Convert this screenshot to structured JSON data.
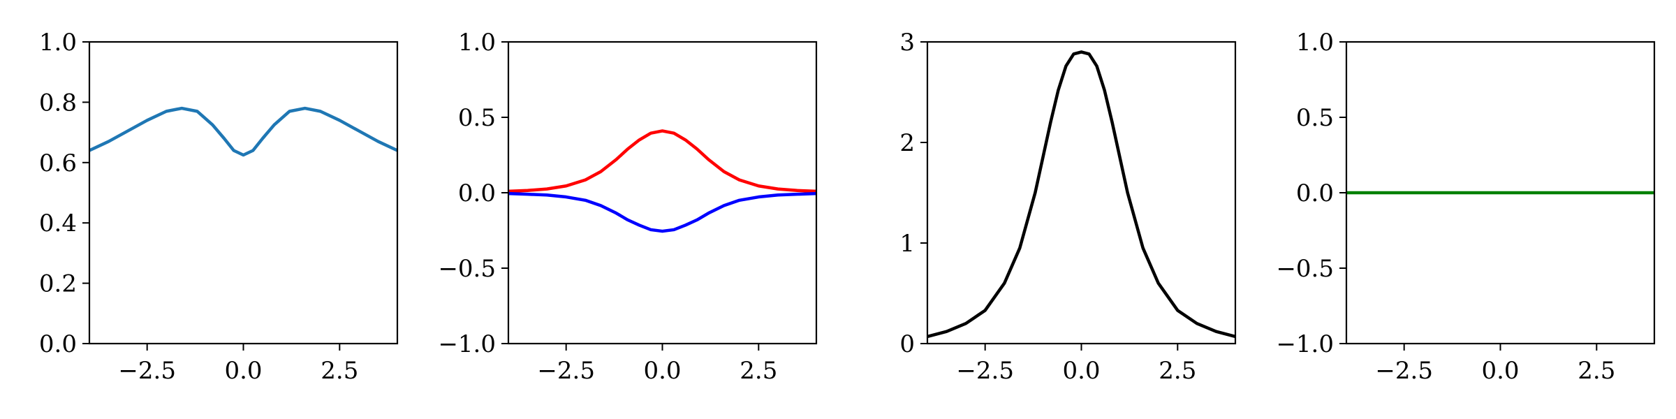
{
  "chart_data": [
    {
      "type": "line",
      "title": "",
      "xlabel": "",
      "ylabel": "",
      "xlim": [
        -4,
        4
      ],
      "ylim": [
        0,
        1
      ],
      "grid": false,
      "xticks": [
        -2.5,
        0,
        2.5
      ],
      "xtick_labels": [
        "−2.5",
        "0.0",
        "2.5"
      ],
      "yticks": [
        0,
        0.2,
        0.4,
        0.6,
        0.8,
        1.0
      ],
      "ytick_labels": [
        "0.0",
        "0.2",
        "0.4",
        "0.6",
        "0.8",
        "1.0"
      ],
      "series": [
        {
          "color": "#1f77b4",
          "x": [
            -4,
            -3.5,
            -3,
            -2.5,
            -2,
            -1.6,
            -1.2,
            -0.8,
            -0.5,
            -0.25,
            0,
            0.25,
            0.5,
            0.8,
            1.2,
            1.6,
            2,
            2.5,
            3,
            3.5,
            4
          ],
          "y": [
            0.64,
            0.67,
            0.705,
            0.74,
            0.77,
            0.78,
            0.77,
            0.725,
            0.68,
            0.64,
            0.625,
            0.64,
            0.68,
            0.725,
            0.77,
            0.78,
            0.77,
            0.74,
            0.705,
            0.67,
            0.64
          ]
        }
      ]
    },
    {
      "type": "line",
      "title": "",
      "xlabel": "",
      "ylabel": "",
      "xlim": [
        -4,
        4
      ],
      "ylim": [
        -1,
        1
      ],
      "grid": false,
      "xticks": [
        -2.5,
        0,
        2.5
      ],
      "xtick_labels": [
        "−2.5",
        "0.0",
        "2.5"
      ],
      "yticks": [
        -1,
        -0.5,
        0,
        0.5,
        1
      ],
      "ytick_labels": [
        "−1.0",
        "−0.5",
        "0.0",
        "0.5",
        "1.0"
      ],
      "series": [
        {
          "color": "#ff0000",
          "x": [
            -4,
            -3.5,
            -3,
            -2.5,
            -2,
            -1.6,
            -1.2,
            -0.9,
            -0.6,
            -0.3,
            0,
            0.3,
            0.6,
            0.9,
            1.2,
            1.6,
            2,
            2.5,
            3,
            3.5,
            4
          ],
          "y": [
            0.01,
            0.015,
            0.025,
            0.045,
            0.085,
            0.14,
            0.22,
            0.29,
            0.35,
            0.395,
            0.41,
            0.395,
            0.35,
            0.29,
            0.22,
            0.14,
            0.085,
            0.045,
            0.025,
            0.015,
            0.01
          ]
        },
        {
          "color": "#0000ff",
          "x": [
            -4,
            -3.5,
            -3,
            -2.5,
            -2,
            -1.6,
            -1.2,
            -0.9,
            -0.6,
            -0.3,
            0,
            0.3,
            0.6,
            0.9,
            1.2,
            1.6,
            2,
            2.5,
            3,
            3.5,
            4
          ],
          "y": [
            -0.005,
            -0.01,
            -0.015,
            -0.028,
            -0.05,
            -0.085,
            -0.135,
            -0.18,
            -0.215,
            -0.245,
            -0.255,
            -0.245,
            -0.215,
            -0.18,
            -0.135,
            -0.085,
            -0.05,
            -0.028,
            -0.015,
            -0.01,
            -0.005
          ]
        }
      ]
    },
    {
      "type": "line",
      "title": "",
      "xlabel": "",
      "ylabel": "",
      "xlim": [
        -4,
        4
      ],
      "ylim": [
        0,
        3
      ],
      "grid": false,
      "xticks": [
        -2.5,
        0,
        2.5
      ],
      "xtick_labels": [
        "−2.5",
        "0.0",
        "2.5"
      ],
      "yticks": [
        0,
        1,
        2,
        3
      ],
      "ytick_labels": [
        "0",
        "1",
        "2",
        "3"
      ],
      "series": [
        {
          "color": "#000000",
          "x": [
            -4,
            -3.5,
            -3,
            -2.5,
            -2,
            -1.6,
            -1.2,
            -1,
            -0.8,
            -0.6,
            -0.4,
            -0.2,
            0,
            0.2,
            0.4,
            0.6,
            0.8,
            1,
            1.2,
            1.6,
            2,
            2.5,
            3,
            3.5,
            4
          ],
          "y": [
            0.07,
            0.12,
            0.2,
            0.33,
            0.6,
            0.95,
            1.5,
            1.85,
            2.2,
            2.52,
            2.76,
            2.88,
            2.9,
            2.88,
            2.76,
            2.52,
            2.2,
            1.85,
            1.5,
            0.95,
            0.6,
            0.33,
            0.2,
            0.12,
            0.07
          ]
        }
      ]
    },
    {
      "type": "line",
      "title": "",
      "xlabel": "",
      "ylabel": "",
      "xlim": [
        -4,
        4
      ],
      "ylim": [
        -1,
        1
      ],
      "grid": false,
      "xticks": [
        -2.5,
        0,
        2.5
      ],
      "xtick_labels": [
        "−2.5",
        "0.0",
        "2.5"
      ],
      "yticks": [
        -1,
        -0.5,
        0,
        0.5,
        1
      ],
      "ytick_labels": [
        "−1.0",
        "−0.5",
        "0.0",
        "0.5",
        "1.0"
      ],
      "series": [
        {
          "color": "#008000",
          "x": [
            -4,
            4
          ],
          "y": [
            0,
            0
          ]
        }
      ]
    }
  ]
}
